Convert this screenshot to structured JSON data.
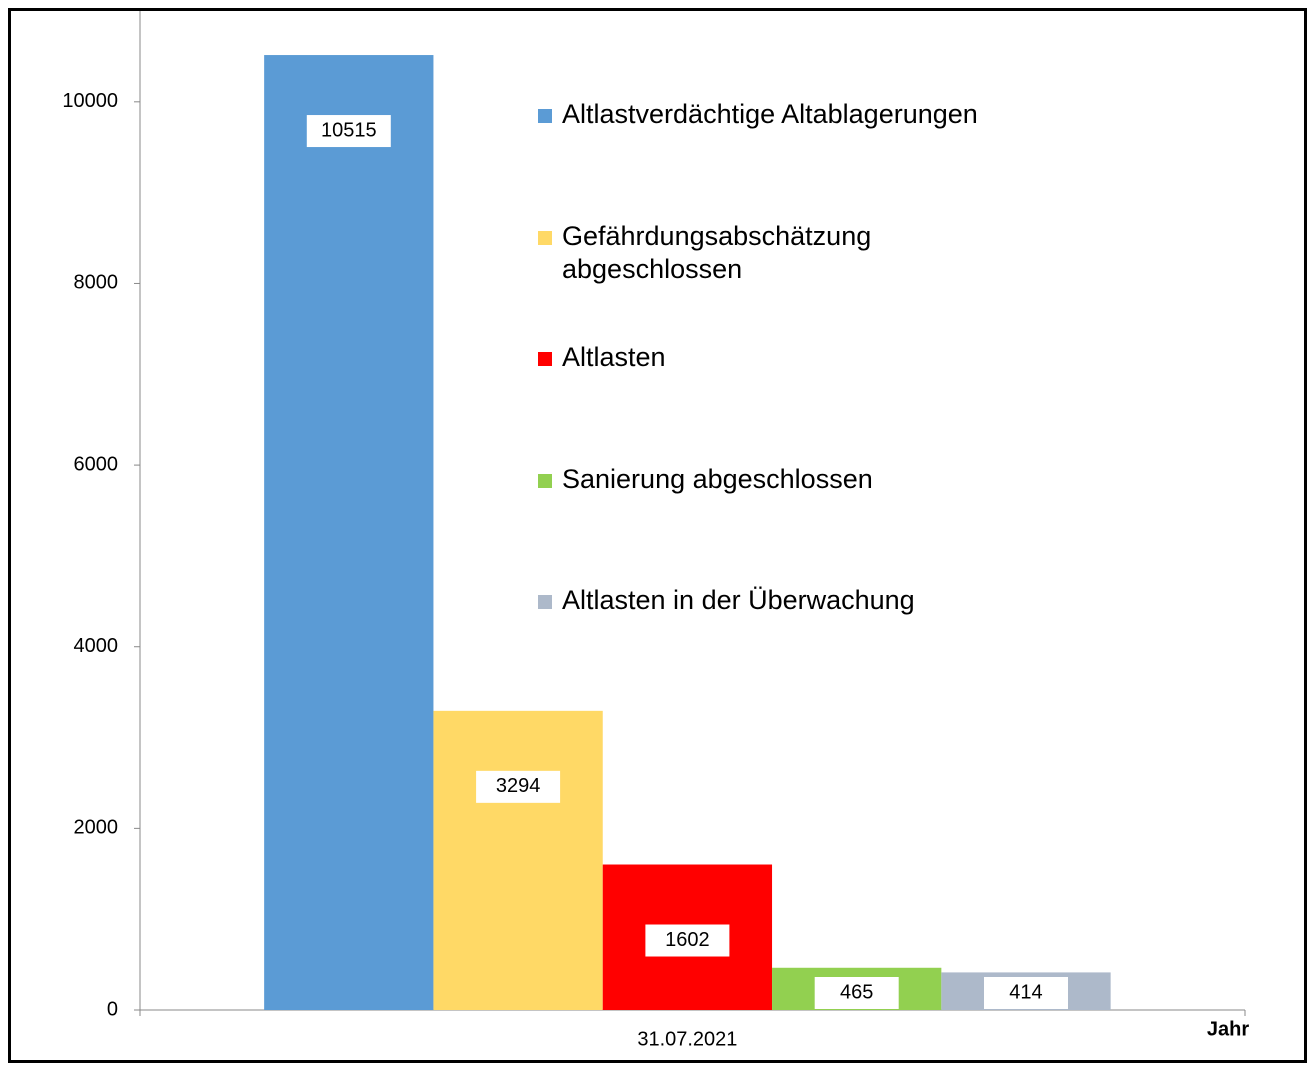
{
  "chart_data": {
    "type": "bar",
    "categories": [
      "31.07.2021"
    ],
    "x_label": "Jahr",
    "series": [
      {
        "name": "Altlastverdächtige Altablagerungen",
        "color": "#5b9bd5",
        "values": [
          10515
        ]
      },
      {
        "name": "Gefährdungsabschätzung abgeschlossen",
        "color": "#ffd966",
        "values": [
          3294
        ]
      },
      {
        "name": "Altlasten",
        "color": "#ff0000",
        "values": [
          1602
        ]
      },
      {
        "name": "Sanierung abgeschlossen",
        "color": "#92d050",
        "values": [
          465
        ]
      },
      {
        "name": "Altlasten in der Überwachung",
        "color": "#adb9ca",
        "values": [
          414
        ]
      }
    ],
    "ylim": [
      0,
      11000
    ],
    "yticks": [
      0,
      2000,
      4000,
      6000,
      8000,
      10000
    ],
    "legend": "right"
  }
}
